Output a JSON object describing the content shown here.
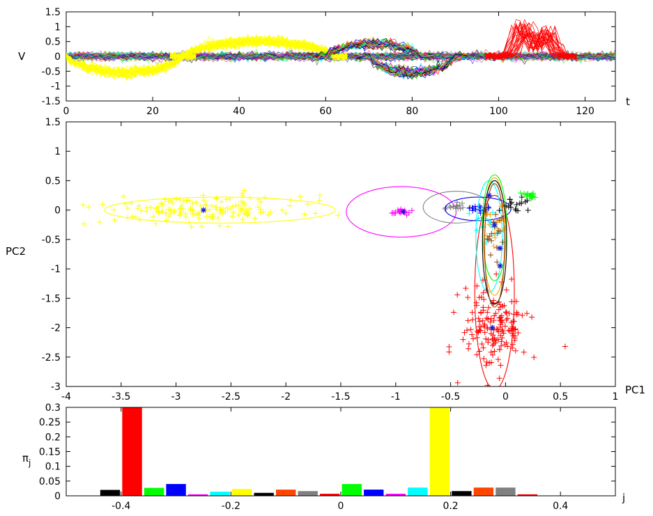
{
  "chart_data": [
    {
      "id": "waveforms",
      "type": "line",
      "xlabel": "t",
      "ylabel": "V",
      "xlim": [
        0,
        127
      ],
      "ylim": [
        -1.5,
        1.5
      ],
      "xticks": [
        0,
        20,
        40,
        60,
        80,
        100,
        120
      ],
      "yticks": [
        -1.5,
        -1,
        -0.5,
        0,
        0.5,
        1,
        1.5
      ],
      "grid": false,
      "features": [
        {
          "name": "yellow-lower-band",
          "color": "#ffff00",
          "t_range": [
            0,
            27
          ],
          "v_range": [
            -0.7,
            0.0
          ]
        },
        {
          "name": "yellow-upper-band",
          "color": "#ffff00",
          "t_range": [
            27,
            62
          ],
          "v_range": [
            0.0,
            0.65
          ]
        },
        {
          "name": "multicolor-upper-band",
          "color": "#2ea02e",
          "t_range": [
            60,
            82
          ],
          "v_range": [
            0.0,
            0.55
          ]
        },
        {
          "name": "multicolor-lower-band",
          "color": "#1a2a8a",
          "t_range": [
            70,
            90
          ],
          "v_range": [
            -0.7,
            0.0
          ]
        },
        {
          "name": "red-spike",
          "color": "#ff0000",
          "t_range": [
            100,
            115
          ],
          "v_range": [
            0.0,
            1.25
          ]
        }
      ]
    },
    {
      "id": "pca-scatter",
      "type": "scatter",
      "xlabel": "PC1",
      "ylabel": "PC2",
      "xlim": [
        -4,
        1
      ],
      "ylim": [
        -3,
        1.5
      ],
      "xticks": [
        -4,
        -3.5,
        -3,
        -2.5,
        -2,
        -1.5,
        -1,
        -0.5,
        0,
        0.5,
        1
      ],
      "yticks": [
        -3,
        -2.5,
        -2,
        -1.5,
        -1,
        -0.5,
        0,
        0.5,
        1,
        1.5
      ],
      "grid": false,
      "clusters": [
        {
          "color": "#ffff00",
          "mean": [
            -2.75,
            0.0
          ],
          "spread": [
            0.45,
            0.12
          ],
          "ellipse": {
            "cx": -2.6,
            "cy": 0.0,
            "rx": 1.05,
            "ry": 0.22
          }
        },
        {
          "color": "#ff0000",
          "mean": [
            -0.1,
            -2.0
          ],
          "spread": [
            0.15,
            0.35
          ],
          "ellipse": {
            "cx": -0.1,
            "cy": -1.4,
            "rx": 0.18,
            "ry": 1.65
          }
        },
        {
          "color": "#ff00ff",
          "mean": [
            -0.95,
            -0.03
          ],
          "spread": [
            0.05,
            0.03
          ],
          "ellipse": {
            "cx": -0.95,
            "cy": -0.03,
            "rx": 0.5,
            "ry": 0.43
          }
        },
        {
          "color": "#808080",
          "mean": [
            -0.45,
            0.05
          ],
          "spread": [
            0.05,
            0.03
          ],
          "ellipse": {
            "cx": -0.45,
            "cy": 0.05,
            "rx": 0.3,
            "ry": 0.27
          }
        },
        {
          "color": "#0000ff",
          "mean": [
            -0.25,
            0.02
          ],
          "spread": [
            0.05,
            0.03
          ],
          "ellipse": {
            "cx": -0.25,
            "cy": 0.02,
            "rx": 0.3,
            "ry": 0.2
          }
        },
        {
          "color": "#00ffff",
          "mean": [
            -0.15,
            -0.3
          ],
          "spread": [
            0.08,
            0.2
          ],
          "ellipse": {
            "cx": -0.15,
            "cy": -0.45,
            "rx": 0.12,
            "ry": 0.95
          }
        },
        {
          "color": "#00ff00",
          "mean": [
            0.2,
            0.25
          ],
          "spread": [
            0.03,
            0.03
          ],
          "ellipse": {
            "cx": -0.1,
            "cy": -0.3,
            "rx": 0.11,
            "ry": 0.9
          }
        },
        {
          "color": "#ffa500",
          "mean": [
            -0.1,
            -0.3
          ],
          "spread": [
            0.05,
            0.2
          ],
          "ellipse": {
            "cx": -0.1,
            "cy": -0.45,
            "rx": 0.1,
            "ry": 1.0
          }
        },
        {
          "color": "#000000",
          "mean": [
            0.1,
            0.1
          ],
          "spread": [
            0.08,
            0.06
          ],
          "ellipse": {
            "cx": -0.1,
            "cy": -0.55,
            "rx": 0.11,
            "ry": 1.05
          }
        },
        {
          "color": "#8b4513",
          "mean": [
            -0.1,
            -0.4
          ],
          "spread": [
            0.04,
            0.2
          ],
          "ellipse": {
            "cx": -0.1,
            "cy": -0.6,
            "rx": 0.09,
            "ry": 1.05
          }
        }
      ],
      "centroids": [
        [
          -2.75,
          0.0
        ],
        [
          -0.93,
          -0.03
        ],
        [
          -0.05,
          -0.65
        ],
        [
          -0.1,
          -0.25
        ],
        [
          -0.15,
          0.25
        ],
        [
          -0.05,
          -0.95
        ],
        [
          -0.12,
          -2.0
        ]
      ]
    },
    {
      "id": "mixing-weights",
      "type": "bar",
      "xlabel": "j",
      "ylabel": "π_j",
      "xlim": [
        -0.5,
        0.5
      ],
      "ylim": [
        0,
        0.3
      ],
      "xticks": [
        -0.4,
        -0.2,
        0,
        0.2,
        0.4
      ],
      "yticks": [
        0,
        0.05,
        0.1,
        0.15,
        0.2,
        0.25,
        0.3
      ],
      "grid": false,
      "bars": [
        {
          "x": -0.42,
          "value": 0.02,
          "color": "#000000"
        },
        {
          "x": -0.38,
          "value": 0.3,
          "color": "#ff0000"
        },
        {
          "x": -0.34,
          "value": 0.027,
          "color": "#00ff00"
        },
        {
          "x": -0.3,
          "value": 0.04,
          "color": "#0000ff"
        },
        {
          "x": -0.26,
          "value": 0.005,
          "color": "#ff00ff"
        },
        {
          "x": -0.22,
          "value": 0.014,
          "color": "#00ffff"
        },
        {
          "x": -0.18,
          "value": 0.023,
          "color": "#ffff00"
        },
        {
          "x": -0.14,
          "value": 0.01,
          "color": "#000000"
        },
        {
          "x": -0.1,
          "value": 0.021,
          "color": "#ff4500"
        },
        {
          "x": -0.06,
          "value": 0.016,
          "color": "#808080"
        },
        {
          "x": -0.02,
          "value": 0.007,
          "color": "#ff0000"
        },
        {
          "x": 0.02,
          "value": 0.04,
          "color": "#00ff00"
        },
        {
          "x": 0.06,
          "value": 0.021,
          "color": "#0000ff"
        },
        {
          "x": 0.1,
          "value": 0.007,
          "color": "#ff00ff"
        },
        {
          "x": 0.14,
          "value": 0.028,
          "color": "#00ffff"
        },
        {
          "x": 0.18,
          "value": 0.3,
          "color": "#ffff00"
        },
        {
          "x": 0.22,
          "value": 0.016,
          "color": "#000000"
        },
        {
          "x": 0.26,
          "value": 0.028,
          "color": "#ff4500"
        },
        {
          "x": 0.3,
          "value": 0.028,
          "color": "#808080"
        },
        {
          "x": 0.34,
          "value": 0.005,
          "color": "#ff0000"
        }
      ]
    }
  ]
}
